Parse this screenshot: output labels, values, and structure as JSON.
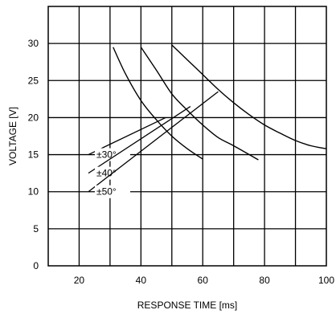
{
  "chart_data": {
    "type": "line",
    "xlabel": "RESPONSE TIME [ms]",
    "ylabel": "VOLTAGE [V]",
    "xlim": [
      10,
      100
    ],
    "ylim": [
      0,
      35
    ],
    "xticks": [
      20,
      40,
      60,
      80,
      100
    ],
    "yticks": [
      0,
      5,
      10,
      15,
      20,
      25,
      30
    ],
    "grid": true,
    "series": [
      {
        "name": "±30°",
        "x": [
          31,
          35,
          40,
          45,
          50,
          55,
          60
        ],
        "y": [
          29.5,
          25.9,
          22.3,
          19.7,
          17.5,
          15.8,
          14.4
        ]
      },
      {
        "name": "±40°",
        "x": [
          40,
          45,
          50,
          55,
          60,
          65,
          70,
          78
        ],
        "y": [
          29.5,
          26.4,
          23.2,
          21.0,
          19.0,
          17.3,
          16.2,
          14.3
        ]
      },
      {
        "name": "±50°",
        "x": [
          50,
          55,
          60,
          65,
          70,
          75,
          80,
          85,
          90,
          95,
          100
        ],
        "y": [
          29.8,
          27.8,
          25.8,
          23.8,
          22.0,
          20.4,
          19.0,
          17.9,
          16.9,
          16.2,
          15.8
        ]
      }
    ],
    "labels": [
      {
        "text": "±30°",
        "label_y": 15.0,
        "leader_to": [
          48,
          20.0
        ]
      },
      {
        "text": "±40°",
        "label_y": 12.5,
        "leader_to": [
          56,
          21.5
        ]
      },
      {
        "text": "±50°",
        "label_y": 10.0,
        "leader_to": [
          65,
          23.5
        ]
      }
    ]
  }
}
